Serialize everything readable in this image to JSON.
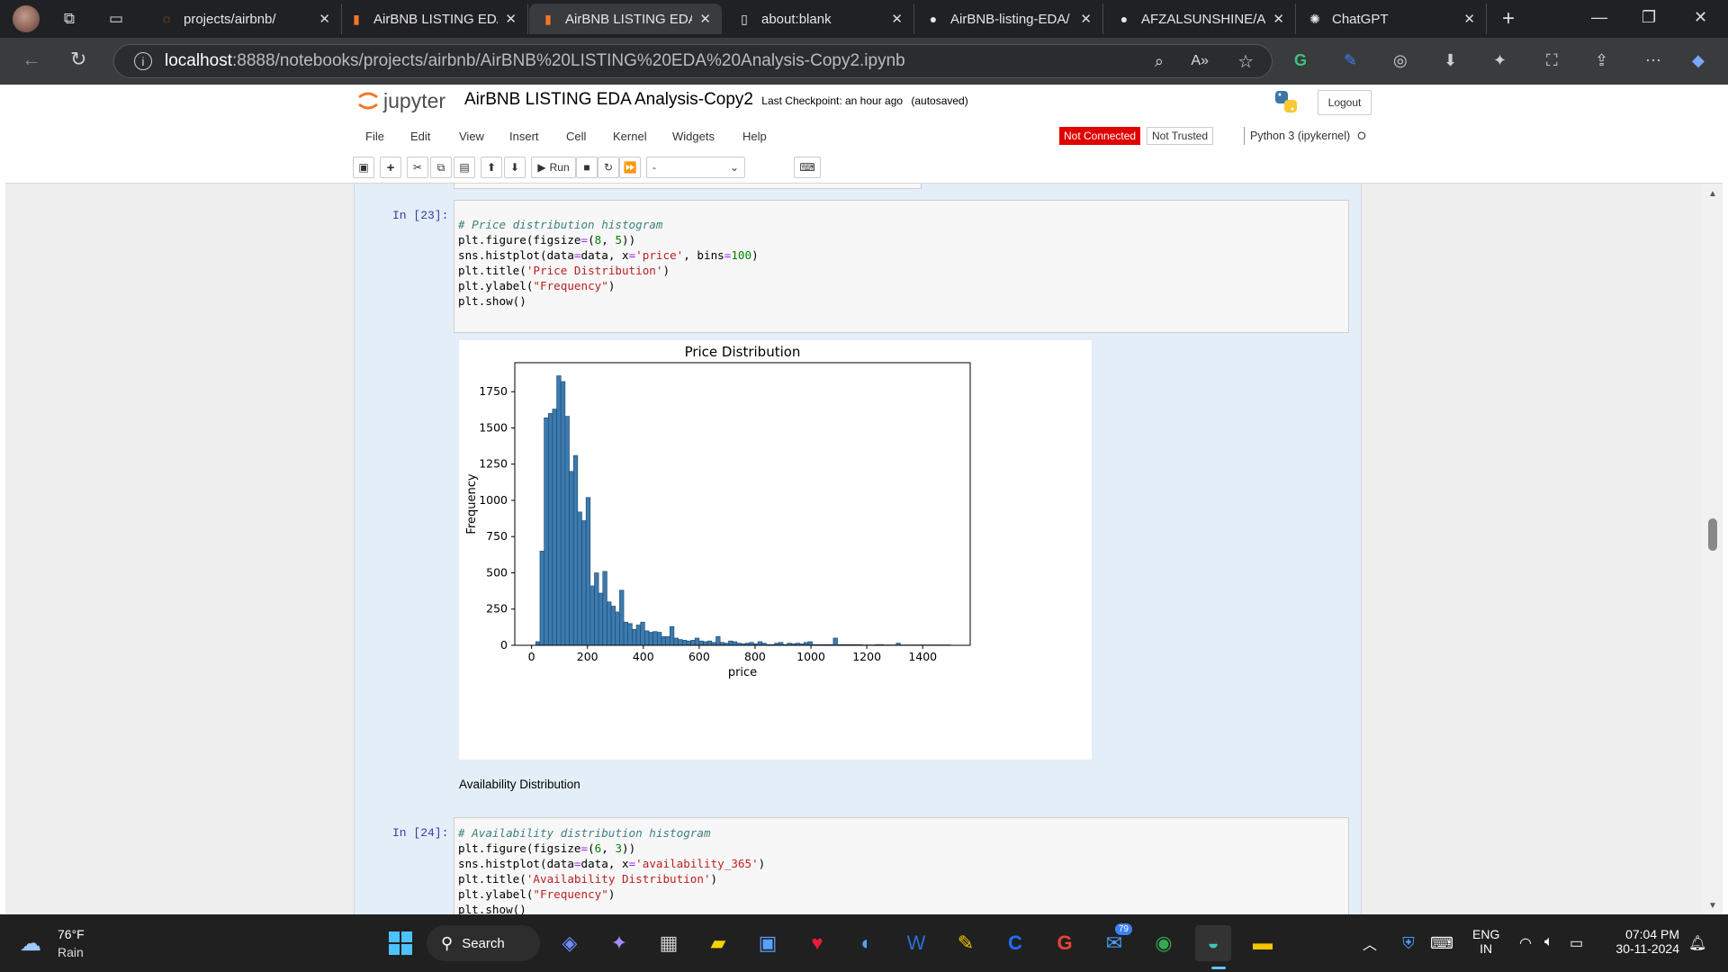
{
  "browser": {
    "tabs": [
      {
        "title": "projects/airbnb/",
        "icon": "jupyter-icon"
      },
      {
        "title": "AirBNB LISTING EDA",
        "icon": "notebook-icon"
      },
      {
        "title": "AirBNB LISTING EDA",
        "icon": "notebook-icon",
        "active": true
      },
      {
        "title": "about:blank",
        "icon": "page-icon"
      },
      {
        "title": "AirBNB-listing-EDA/",
        "icon": "github-icon"
      },
      {
        "title": "AFZALSUNSHINE/A",
        "icon": "github-icon"
      },
      {
        "title": "ChatGPT",
        "icon": "chatgpt-icon"
      }
    ],
    "url_host": "localhost",
    "url_path": ":8888/notebooks/projects/airbnb/AirBNB%20LISTING%20EDA%20Analysis-Copy2.ipynb"
  },
  "jupyter": {
    "logo_text": "jupyter",
    "notebook_title": "AirBNB LISTING EDA Analysis-Copy2",
    "checkpoint": "Last Checkpoint: an hour ago",
    "autosaved": "(autosaved)",
    "logout": "Logout",
    "menus": [
      "File",
      "Edit",
      "View",
      "Insert",
      "Cell",
      "Kernel",
      "Widgets",
      "Help"
    ],
    "status_not_connected": "Not Connected",
    "status_not_trusted": "Not Trusted",
    "kernel": "Python 3 (ipykernel)",
    "run_label": "Run",
    "cell_type": "-"
  },
  "cells": [
    {
      "prompt": "In [23]:",
      "lines": [
        "# Price distribution histogram",
        "plt.figure(figsize=(8, 5))",
        "sns.histplot(data=data, x='price', bins=100)",
        "plt.title('Price Distribution')",
        "plt.ylabel(\"Frequency\")",
        "plt.show()"
      ]
    },
    {
      "markdown": "Availability Distribution"
    },
    {
      "prompt": "In [24]:",
      "lines": [
        "# Availability distribution histogram",
        "plt.figure(figsize=(6, 3))",
        "sns.histplot(data=data, x='availability_365')",
        "plt.title('Availability Distribution')",
        "plt.ylabel(\"Frequency\")",
        "plt.show()"
      ]
    }
  ],
  "chart_data": {
    "type": "bar",
    "title": "Price Distribution",
    "xlabel": "price",
    "ylabel": "Frequency",
    "xlim": [
      -60,
      1570
    ],
    "ylim": [
      0,
      1950
    ],
    "xticks": [
      0,
      200,
      400,
      600,
      800,
      1000,
      1200,
      1400
    ],
    "yticks": [
      0,
      250,
      500,
      750,
      1000,
      1250,
      1500,
      1750
    ],
    "bin_width": 15,
    "bin_start": 0,
    "values": [
      0,
      25,
      650,
      1570,
      1600,
      1630,
      1860,
      1820,
      1580,
      1200,
      1310,
      920,
      860,
      1020,
      410,
      500,
      360,
      510,
      300,
      270,
      230,
      380,
      160,
      150,
      110,
      140,
      160,
      100,
      90,
      95,
      90,
      60,
      60,
      130,
      50,
      40,
      35,
      30,
      35,
      50,
      30,
      25,
      30,
      20,
      60,
      20,
      15,
      30,
      25,
      15,
      10,
      15,
      20,
      10,
      25,
      15,
      5,
      5,
      15,
      20,
      5,
      15,
      10,
      15,
      10,
      20,
      25,
      5,
      5,
      5,
      5,
      5,
      50,
      5,
      5,
      5,
      5,
      5,
      5,
      3,
      3,
      3,
      5,
      5,
      3,
      3,
      3,
      15,
      3,
      3,
      3,
      3,
      3,
      3,
      3,
      3,
      3,
      3,
      3,
      3
    ]
  },
  "taskbar": {
    "weather_temp": "76°F",
    "weather_desc": "Rain",
    "search": "Search",
    "mail_badge": "79",
    "lang1": "ENG",
    "lang2": "IN",
    "time": "07:04 PM",
    "date": "30-11-2024"
  },
  "colors": {
    "bar": "#3b7bb0",
    "bar_edge": "#1f4466",
    "not_connected": "#e00000",
    "chrome_bg": "#202124"
  }
}
